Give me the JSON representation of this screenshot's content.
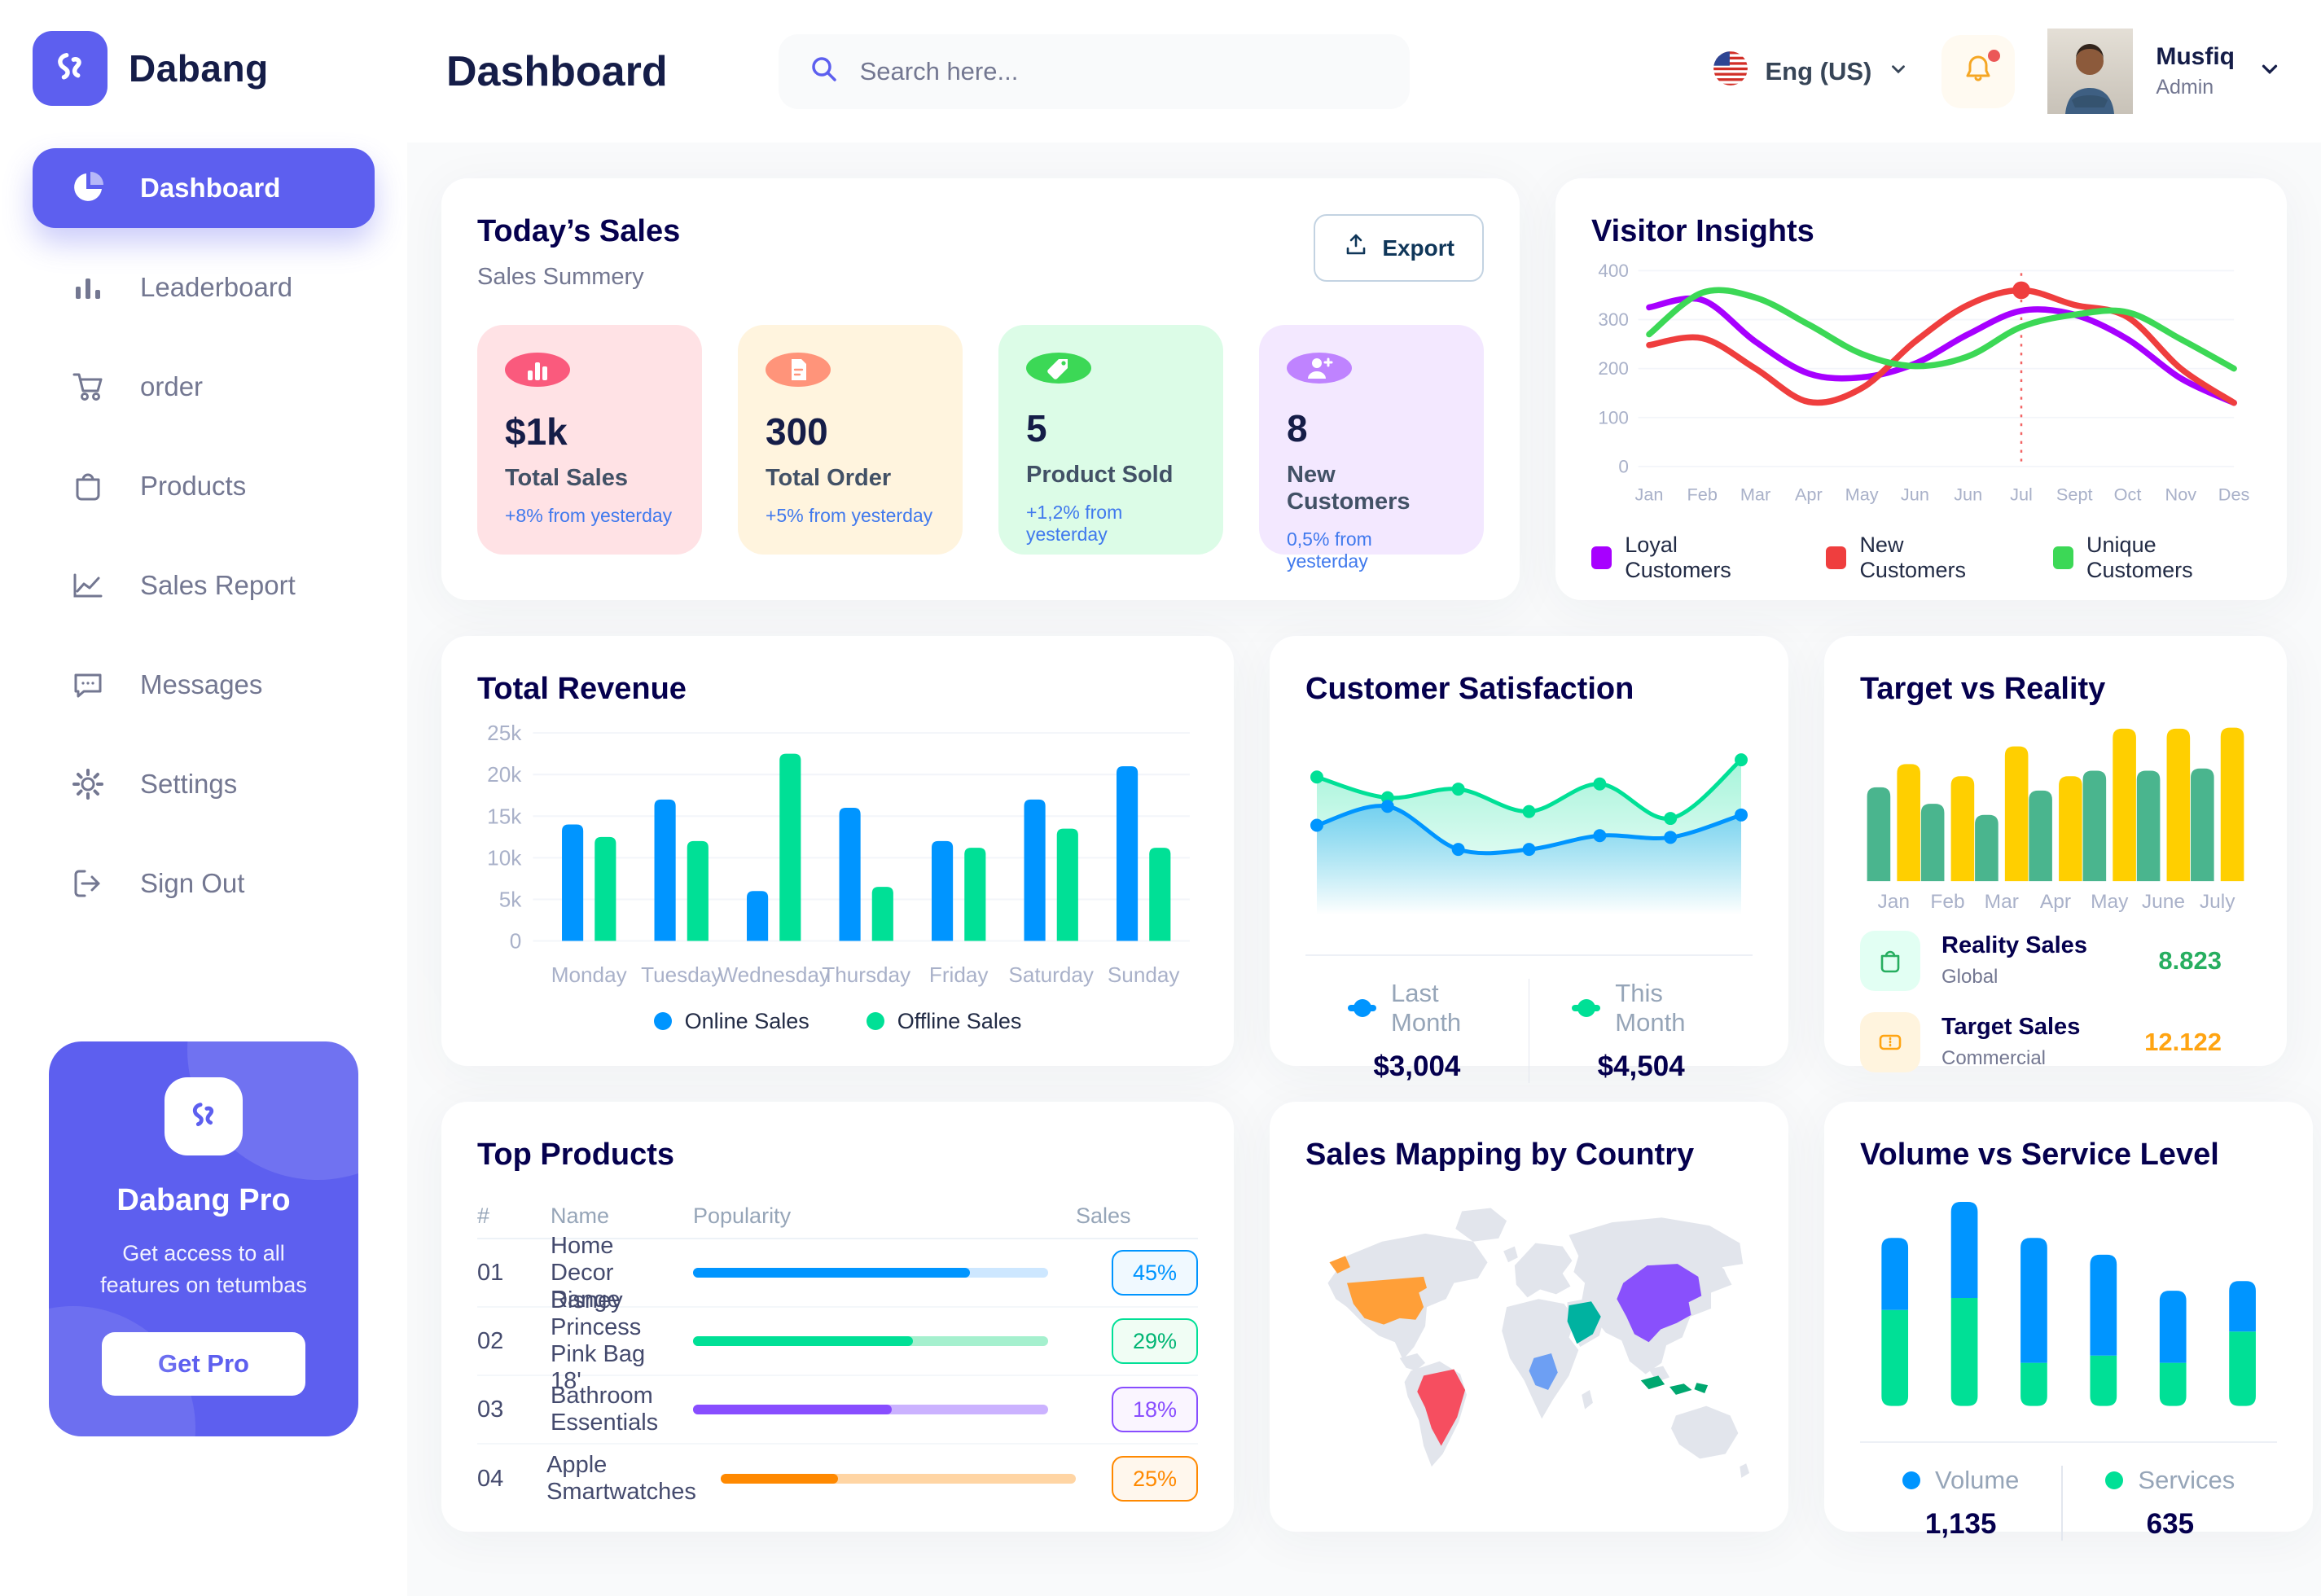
{
  "app": {
    "brand": "Dabang",
    "accent_color": "#5D5FEF"
  },
  "header": {
    "page_title": "Dashboard",
    "search_placeholder": "Search here...",
    "language": "Eng (US)",
    "user_name": "Musfiq",
    "user_role": "Admin"
  },
  "sidebar": {
    "items": [
      {
        "label": "Dashboard",
        "icon": "pie-chart-icon",
        "active": true
      },
      {
        "label": "Leaderboard",
        "icon": "bar-chart-icon",
        "active": false
      },
      {
        "label": "order",
        "icon": "cart-icon",
        "active": false
      },
      {
        "label": "Products",
        "icon": "bag-icon",
        "active": false
      },
      {
        "label": "Sales Report",
        "icon": "line-chart-icon",
        "active": false
      },
      {
        "label": "Messages",
        "icon": "chat-icon",
        "active": false
      },
      {
        "label": "Settings",
        "icon": "gear-icon",
        "active": false
      },
      {
        "label": "Sign Out",
        "icon": "sign-out-icon",
        "active": false
      }
    ],
    "pro": {
      "title": "Dabang Pro",
      "line1": "Get access to all",
      "line2": "features on tetumbas",
      "button": "Get Pro"
    }
  },
  "todays_sales": {
    "title": "Today’s Sales",
    "subtitle": "Sales Summery",
    "export_label": "Export",
    "cards": [
      {
        "value": "$1k",
        "label": "Total Sales",
        "change": "+8% from yesterday",
        "bg": "#FFE2E5",
        "icon_bg": "#FA5A7D",
        "icon": "chart-bars-icon"
      },
      {
        "value": "300",
        "label": "Total Order",
        "change": "+5% from yesterday",
        "bg": "#FFF4DE",
        "icon_bg": "#FF947A",
        "icon": "receipt-icon"
      },
      {
        "value": "5",
        "label": "Product Sold",
        "change": "+1,2% from yesterday",
        "bg": "#DCFCE7",
        "icon_bg": "#3CD856",
        "icon": "tag-icon"
      },
      {
        "value": "8",
        "label": "New Customers",
        "change": "0,5% from yesterday",
        "bg": "#F3E8FF",
        "icon_bg": "#BF83FF",
        "icon": "user-plus-icon"
      }
    ]
  },
  "chart_data": [
    {
      "id": "visitor_insights",
      "type": "line",
      "title": "Visitor Insights",
      "x": [
        "Jan",
        "Feb",
        "Mar",
        "Apr",
        "May",
        "Jun",
        "Jun",
        "Jul",
        "Sept",
        "Oct",
        "Nov",
        "Des"
      ],
      "ylim": [
        0,
        400
      ],
      "yticks": [
        0,
        100,
        200,
        300,
        400
      ],
      "grid": true,
      "legend_position": "bottom",
      "series": [
        {
          "name": "Loyal Customers",
          "color": "#A700FF",
          "values": [
            325,
            340,
            255,
            190,
            182,
            210,
            270,
            318,
            310,
            260,
            180,
            130
          ]
        },
        {
          "name": "New Customers",
          "color": "#EF3E3E",
          "values": [
            248,
            262,
            200,
            132,
            160,
            255,
            330,
            360,
            330,
            305,
            200,
            130
          ]
        },
        {
          "name": "Unique Customers",
          "color": "#3CD856",
          "values": [
            270,
            355,
            345,
            290,
            230,
            205,
            225,
            285,
            310,
            315,
            260,
            200
          ]
        }
      ],
      "marker": {
        "series": 1,
        "index": 7,
        "note": "red dot with dashed vertical line at Jul"
      }
    },
    {
      "id": "total_revenue",
      "type": "bar",
      "title": "Total Revenue",
      "categories": [
        "Monday",
        "Tuesday",
        "Wednesday",
        "Thursday",
        "Friday",
        "Saturday",
        "Sunday"
      ],
      "ylim": [
        0,
        25
      ],
      "ytick_labels": [
        "0",
        "5k",
        "10k",
        "15k",
        "20k",
        "25k"
      ],
      "grid": true,
      "legend_position": "bottom",
      "series": [
        {
          "name": "Online Sales",
          "color": "#0095FF",
          "values": [
            14,
            17,
            6,
            16,
            12,
            17,
            21
          ]
        },
        {
          "name": "Offline Sales",
          "color": "#00E096",
          "values": [
            12.5,
            12,
            22.5,
            6.5,
            11.2,
            13.5,
            11.2
          ]
        }
      ]
    },
    {
      "id": "customer_satisfaction",
      "type": "area",
      "title": "Customer Satisfaction",
      "ylim": [
        0,
        100
      ],
      "legend_position": "bottom",
      "series": [
        {
          "name": "Last Month",
          "color": "#0095FF",
          "total": "$3,004",
          "values": [
            52,
            63,
            38,
            38,
            46,
            45,
            58
          ]
        },
        {
          "name": "This Month",
          "color": "#00E096",
          "total": "$4,504",
          "values": [
            80,
            68,
            73,
            60,
            76,
            56,
            90
          ]
        }
      ]
    },
    {
      "id": "target_vs_reality",
      "type": "bar",
      "title": "Target vs Reality",
      "categories": [
        "Jan",
        "Feb",
        "Mar",
        "Apr",
        "May",
        "June",
        "July"
      ],
      "ylim": [
        0,
        14
      ],
      "series": [
        {
          "name": "Reality Sales",
          "color": "#4AB58E",
          "values": [
            8.5,
            7,
            6,
            8.2,
            10,
            10,
            10.2
          ]
        },
        {
          "name": "Target Sales",
          "color": "#FFCF00",
          "values": [
            10.6,
            9.5,
            12.2,
            9.5,
            13.8,
            13.8,
            13.9
          ]
        }
      ],
      "legend": [
        {
          "label": "Reality Sales",
          "sublabel": "Global",
          "value": "8.823",
          "value_color": "#27AE60",
          "icon_bg": "#E2FFF3",
          "icon": "shopping-bag-icon"
        },
        {
          "label": "Target Sales",
          "sublabel": "Commercial",
          "value": "12.122",
          "value_color": "#FFA412",
          "icon_bg": "#FFF4DE",
          "icon": "ticket-icon"
        }
      ]
    },
    {
      "id": "top_products",
      "type": "table",
      "title": "Top Products",
      "headers": [
        "#",
        "Name",
        "Popularity",
        "Sales"
      ],
      "rows": [
        {
          "id": "01",
          "name": "Home Decor Range",
          "popularity": 78,
          "sales": "45%",
          "color": "#0095FF",
          "track": "#CDE7FF",
          "badge_bg": "#F0F9FF",
          "badge_border": "#0095FF",
          "badge_text": "#0095FF"
        },
        {
          "id": "02",
          "name": "Disney Princess Pink Bag 18'",
          "popularity": 62,
          "sales": "29%",
          "color": "#00E096",
          "track": "#A5F0CE",
          "badge_bg": "#F0FDF4",
          "badge_border": "#00E096",
          "badge_text": "#00B574"
        },
        {
          "id": "03",
          "name": "Bathroom Essentials",
          "popularity": 56,
          "sales": "18%",
          "color": "#884DFF",
          "track": "#CBB2FF",
          "badge_bg": "#FAF5FF",
          "badge_border": "#884DFF",
          "badge_text": "#884DFF"
        },
        {
          "id": "04",
          "name": "Apple Smartwatches",
          "popularity": 33,
          "sales": "25%",
          "color": "#FF8900",
          "track": "#FFD5A4",
          "badge_bg": "#FFF7ED",
          "badge_border": "#FF8900",
          "badge_text": "#FF8900"
        }
      ]
    },
    {
      "id": "sales_mapping",
      "type": "map",
      "title": "Sales Mapping by Country",
      "base_color": "#E2E5EC",
      "countries": [
        {
          "name": "United States",
          "color": "#FF9F38"
        },
        {
          "name": "Brazil",
          "color": "#F64E60"
        },
        {
          "name": "Congo",
          "color": "#6D9FF3"
        },
        {
          "name": "Saudi Arabia",
          "color": "#00B2A0"
        },
        {
          "name": "China",
          "color": "#8950FC"
        },
        {
          "name": "Indonesia",
          "color": "#00A76F"
        }
      ]
    },
    {
      "id": "volume_vs_service_level",
      "type": "stacked_bar",
      "title": "Volume vs Service Level",
      "legend_position": "bottom",
      "series": [
        {
          "name": "Volume",
          "color": "#0095FF",
          "total": "1,135",
          "values": [
            300,
            400,
            520,
            420,
            300,
            210
          ]
        },
        {
          "name": "Services",
          "color": "#00E096",
          "total": "635",
          "values": [
            400,
            450,
            180,
            210,
            180,
            310
          ]
        }
      ]
    }
  ]
}
